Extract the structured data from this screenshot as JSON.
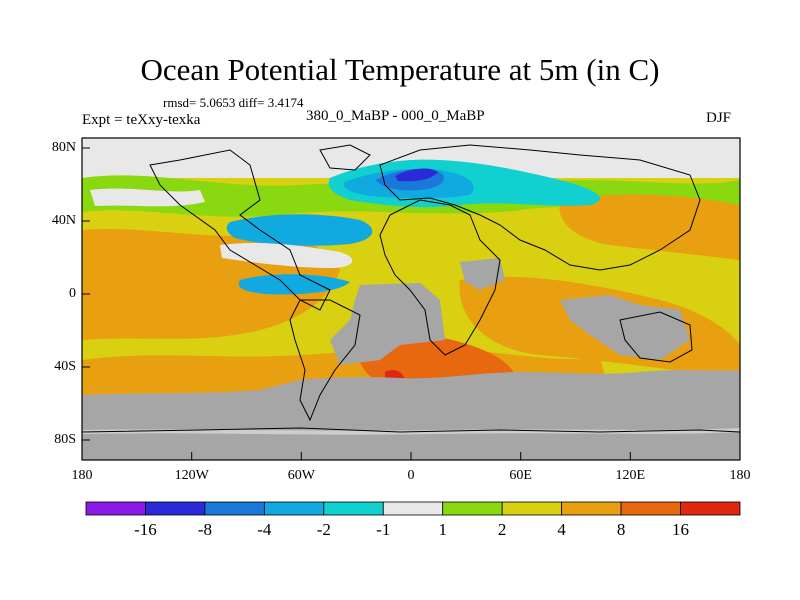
{
  "title": "Ocean Potential Temperature at 5m (in C)",
  "stats": "rmsd= 5.0653 diff= 3.4174",
  "experiment": "Expt = teXxy-texka",
  "subtitle": "380_0_MaBP - 000_0_MaBP",
  "season": "DJF",
  "lat_ticks": [
    "80N",
    "40N",
    "0",
    "40S",
    "80S"
  ],
  "lon_ticks": [
    "180",
    "120W",
    "60W",
    "0",
    "60E",
    "120E",
    "180"
  ],
  "colorbar": {
    "labels": [
      "-16",
      "-8",
      "-4",
      "-2",
      "-1",
      "1",
      "2",
      "4",
      "8",
      "16"
    ],
    "colors": [
      "#8a1ae6",
      "#2a2ad8",
      "#1a78d8",
      "#10aae0",
      "#10d0d0",
      "#e8e8e8",
      "#8ad810",
      "#d8d010",
      "#e8a010",
      "#e86810",
      "#e02810"
    ]
  },
  "land_color": "#a6a6a6"
}
